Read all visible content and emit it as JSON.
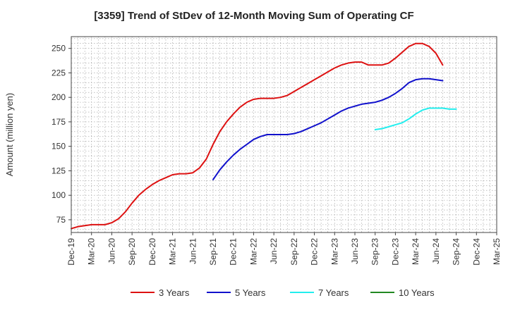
{
  "chart_data": {
    "type": "line",
    "title": "[3359]  Trend of StDev of 12-Month Moving Sum of Operating CF",
    "ylabel": "Amount (million yen)",
    "xlabel": "",
    "ylim": [
      62,
      262
    ],
    "yticks": [
      75,
      100,
      125,
      150,
      175,
      200,
      225,
      250
    ],
    "grid": true,
    "legend_position": "bottom",
    "x_tick_labels": [
      "Dec-19",
      "Mar-20",
      "Jun-20",
      "Sep-20",
      "Dec-20",
      "Mar-21",
      "Jun-21",
      "Sep-21",
      "Dec-21",
      "Mar-22",
      "Jun-22",
      "Sep-22",
      "Dec-22",
      "Mar-23",
      "Jun-23",
      "Sep-23",
      "Dec-23",
      "Mar-24",
      "Jun-24",
      "Sep-24",
      "Dec-24",
      "Mar-25"
    ],
    "series": [
      {
        "name": "3 Years",
        "color": "#dd1111",
        "start": "Dec-19",
        "values": [
          66,
          68,
          69,
          70,
          70,
          70,
          72,
          76,
          83,
          92,
          100,
          106,
          111,
          115,
          118,
          121,
          122,
          122,
          123,
          128,
          137,
          152,
          165,
          175,
          183,
          190,
          195,
          198,
          199,
          199,
          199,
          200,
          202,
          206,
          210,
          214,
          218,
          222,
          226,
          230,
          233,
          235,
          236,
          236,
          233,
          233,
          233,
          235,
          240,
          246,
          252,
          255,
          255,
          252,
          245,
          233
        ]
      },
      {
        "name": "5 Years",
        "color": "#1111cc",
        "start": "Sep-21",
        "values": [
          116,
          126,
          134,
          141,
          147,
          152,
          157,
          160,
          162,
          162,
          162,
          162,
          163,
          165,
          168,
          171,
          174,
          178,
          182,
          186,
          189,
          191,
          193,
          194,
          195,
          197,
          200,
          204,
          209,
          215,
          218,
          219,
          219,
          218,
          217
        ]
      },
      {
        "name": "7 Years",
        "color": "#22eeee",
        "start": "Sep-23",
        "values": [
          167,
          168,
          170,
          172,
          174,
          178,
          183,
          187,
          189,
          189,
          189,
          188,
          188
        ]
      },
      {
        "name": "10 Years",
        "color": "#228822",
        "start": "",
        "values": []
      }
    ]
  }
}
